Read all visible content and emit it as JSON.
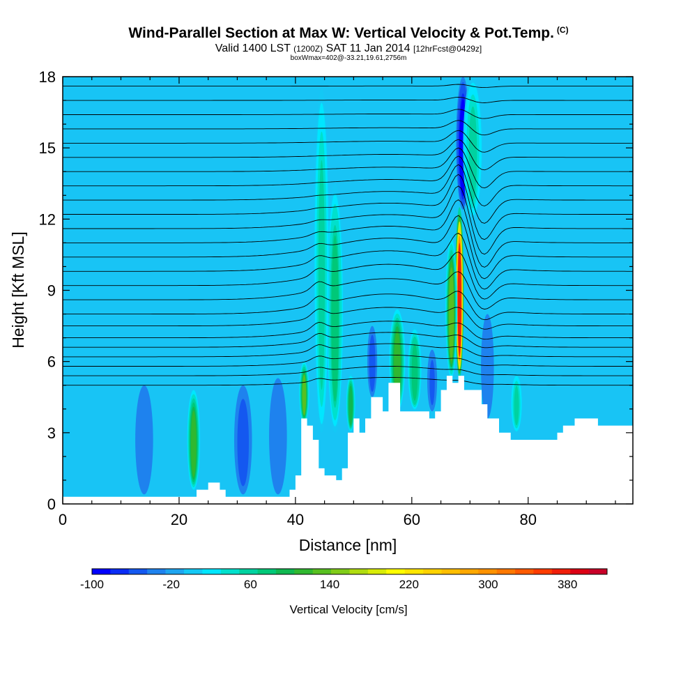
{
  "header": {
    "title": "Wind-Parallel Section at Max W: Vertical Velocity & Pot.Temp.",
    "title_mark": "(C)",
    "valid_prefix": "Valid 1400 LST",
    "valid_utc": "(1200Z)",
    "valid_date": "SAT 11 Jan 2014",
    "forecast_info": "[12hrFcst@0429z]",
    "box_info": "boxWmax=402@-33.21,19.61,2756m"
  },
  "colors": {
    "palette": [
      "#0000ff",
      "#0a2cf5",
      "#1458f0",
      "#1e82ee",
      "#1ea5f0",
      "#14c8f5",
      "#00e6ff",
      "#00e0cc",
      "#00d2a0",
      "#00c878",
      "#10b850",
      "#30b830",
      "#58c020",
      "#80cc18",
      "#b0dc10",
      "#d8ec08",
      "#ffff00",
      "#ffe600",
      "#ffd200",
      "#ffbe00",
      "#ffa800",
      "#ff9200",
      "#ff7800",
      "#ff5a00",
      "#ff3c00",
      "#f01e0a",
      "#dc0014",
      "#c80028"
    ],
    "background_field": "#18c4f5",
    "terrain": "#ffffff"
  },
  "chart_data": {
    "type": "heatmap",
    "xlabel": "Distance [nm]",
    "ylabel": "Height [Kft MSL]",
    "xlim": [
      0,
      98
    ],
    "ylim": [
      0,
      18
    ],
    "xticks": [
      0,
      20,
      40,
      60,
      80
    ],
    "yticks": [
      0,
      3,
      6,
      9,
      12,
      15,
      18
    ],
    "colorbar": {
      "label": "Vertical Velocity [cm/s]",
      "min": -100,
      "max": 420,
      "step": 20,
      "tick_labels": [
        "-100",
        "-20",
        "60",
        "140",
        "220",
        "300",
        "380"
      ],
      "tick_values": [
        -100,
        -20,
        60,
        140,
        220,
        300,
        380
      ]
    },
    "terrain_profile_kft": [
      [
        0,
        0.3
      ],
      [
        20,
        0.3
      ],
      [
        23,
        0.6
      ],
      [
        25,
        0.9
      ],
      [
        27,
        0.6
      ],
      [
        28,
        0.3
      ],
      [
        38,
        0.3
      ],
      [
        39,
        0.6
      ],
      [
        40,
        1.2
      ],
      [
        41,
        3.6
      ],
      [
        42,
        3.3
      ],
      [
        43,
        2.7
      ],
      [
        44,
        1.5
      ],
      [
        45,
        1.2
      ],
      [
        47,
        1.0
      ],
      [
        48,
        1.5
      ],
      [
        49,
        3.0
      ],
      [
        50,
        3.6
      ],
      [
        51,
        3.0
      ],
      [
        52,
        3.6
      ],
      [
        53,
        4.5
      ],
      [
        54,
        4.5
      ],
      [
        55,
        3.9
      ],
      [
        56,
        5.1
      ],
      [
        57,
        5.1
      ],
      [
        58,
        3.9
      ],
      [
        62,
        3.9
      ],
      [
        63,
        3.6
      ],
      [
        64,
        3.9
      ],
      [
        65,
        4.8
      ],
      [
        66,
        5.4
      ],
      [
        67,
        5.1
      ],
      [
        68,
        5.4
      ],
      [
        69,
        4.8
      ],
      [
        71,
        4.8
      ],
      [
        72,
        4.2
      ],
      [
        73,
        3.6
      ],
      [
        75,
        3.0
      ],
      [
        77,
        2.7
      ],
      [
        80,
        2.7
      ],
      [
        85,
        3.0
      ],
      [
        86,
        3.3
      ],
      [
        88,
        3.6
      ],
      [
        91,
        3.6
      ],
      [
        92,
        3.3
      ],
      [
        98,
        3.3
      ]
    ],
    "w_cores": [
      {
        "x": 68.2,
        "y_bottom": 5.3,
        "y_top": 12.5,
        "w": 402,
        "width_nm": 0.9
      },
      {
        "x": 66.8,
        "y_bottom": 5.3,
        "y_top": 11.2,
        "w": 150,
        "width_nm": 1.2
      },
      {
        "x": 57.5,
        "y_bottom": 3.9,
        "y_top": 8.2,
        "w": 125,
        "width_nm": 1.6
      },
      {
        "x": 60.5,
        "y_bottom": 3.9,
        "y_top": 7.5,
        "w": 90,
        "width_nm": 1.5
      },
      {
        "x": 46.8,
        "y_bottom": 3.0,
        "y_top": 13.5,
        "w": 80,
        "width_nm": 1.8
      },
      {
        "x": 44.5,
        "y_bottom": 3.0,
        "y_top": 17.5,
        "w": 60,
        "width_nm": 1.6
      },
      {
        "x": 22.5,
        "y_bottom": 0.6,
        "y_top": 4.8,
        "w": 120,
        "width_nm": 1.3
      },
      {
        "x": 41.5,
        "y_bottom": 3.4,
        "y_top": 6.0,
        "w": 140,
        "width_nm": 1.0
      },
      {
        "x": 49.5,
        "y_bottom": 3.0,
        "y_top": 5.5,
        "w": 110,
        "width_nm": 1.0
      },
      {
        "x": 70.5,
        "y_bottom": 12.0,
        "y_top": 18.0,
        "w": 70,
        "width_nm": 2.0
      },
      {
        "x": 78.0,
        "y_bottom": 3.0,
        "y_top": 5.5,
        "w": 60,
        "width_nm": 1.2
      }
    ],
    "w_downdrafts": [
      {
        "x": 68.8,
        "y_bottom": 12.4,
        "y_top": 18.0,
        "w": -100,
        "width_nm": 1.4
      },
      {
        "x": 53.2,
        "y_bottom": 4.5,
        "y_top": 7.5,
        "w": -60,
        "width_nm": 1.0
      },
      {
        "x": 63.5,
        "y_bottom": 3.9,
        "y_top": 6.5,
        "w": -50,
        "width_nm": 1.0
      },
      {
        "x": 73.0,
        "y_bottom": 3.6,
        "y_top": 8.0,
        "w": -40,
        "width_nm": 1.3
      },
      {
        "x": 31.0,
        "y_bottom": 0.4,
        "y_top": 5.0,
        "w": -60,
        "width_nm": 1.8
      },
      {
        "x": 14.0,
        "y_bottom": 0.4,
        "y_top": 5.0,
        "w": -40,
        "width_nm": 1.8
      },
      {
        "x": 37.0,
        "y_bottom": 0.4,
        "y_top": 5.3,
        "w": -30,
        "width_nm": 1.8
      }
    ],
    "theta_isentropes_kft": [
      5.0,
      5.4,
      5.8,
      6.2,
      6.6,
      7.0,
      7.5,
      8.0,
      8.6,
      9.2,
      9.8,
      10.4,
      11.0,
      11.6,
      12.2,
      12.8,
      13.4,
      14.0,
      14.6,
      15.2,
      15.8,
      16.4,
      17.0,
      17.6
    ]
  }
}
